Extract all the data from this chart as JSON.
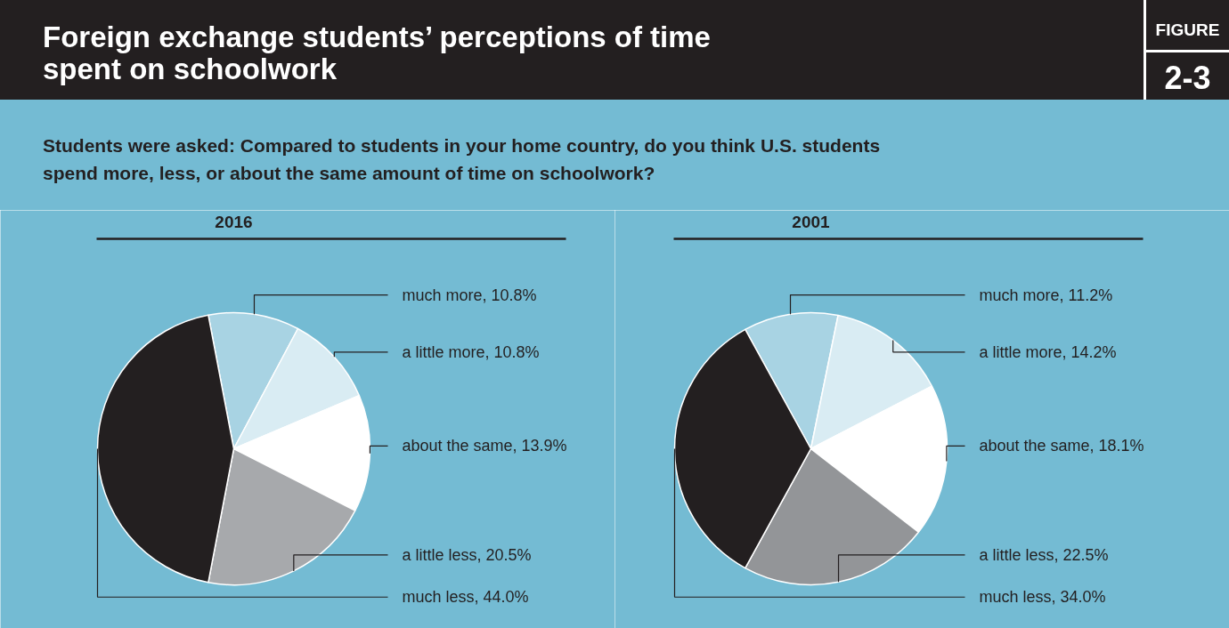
{
  "chart_data": [
    {
      "type": "pie",
      "title": "2016",
      "annotations": [
        "Foreign exchange students’ perceptions of time spent on schoolwork",
        "FIGURE",
        "2-3",
        "Students were asked: Compared to students in your home country, do you think U.S. students spend more, less, or about the same amount of time on schoolwork?"
      ],
      "categories": [
        "much more",
        "a little more",
        "about the same",
        "a little less",
        "much less"
      ],
      "values": [
        10.8,
        10.8,
        13.9,
        20.5,
        44.0
      ],
      "value_labels": [
        "10.8%",
        "10.8%",
        "13.9%",
        "20.5%",
        "44.0%"
      ],
      "colors": [
        "#a8d3e3",
        "#d9ecf3",
        "#ffffff",
        "#a7a9ac",
        "#231f20"
      ],
      "legend": false
    },
    {
      "type": "pie",
      "title": "2001",
      "categories": [
        "much more",
        "a little more",
        "about the same",
        "a little less",
        "much less"
      ],
      "values": [
        11.2,
        14.2,
        18.1,
        22.5,
        34.0
      ],
      "value_labels": [
        "11.2%",
        "14.2%",
        "18.1%",
        "22.5%",
        "34.0%"
      ],
      "colors": [
        "#a8d3e3",
        "#d9ecf3",
        "#ffffff",
        "#939598",
        "#231f20"
      ],
      "legend": false
    }
  ]
}
